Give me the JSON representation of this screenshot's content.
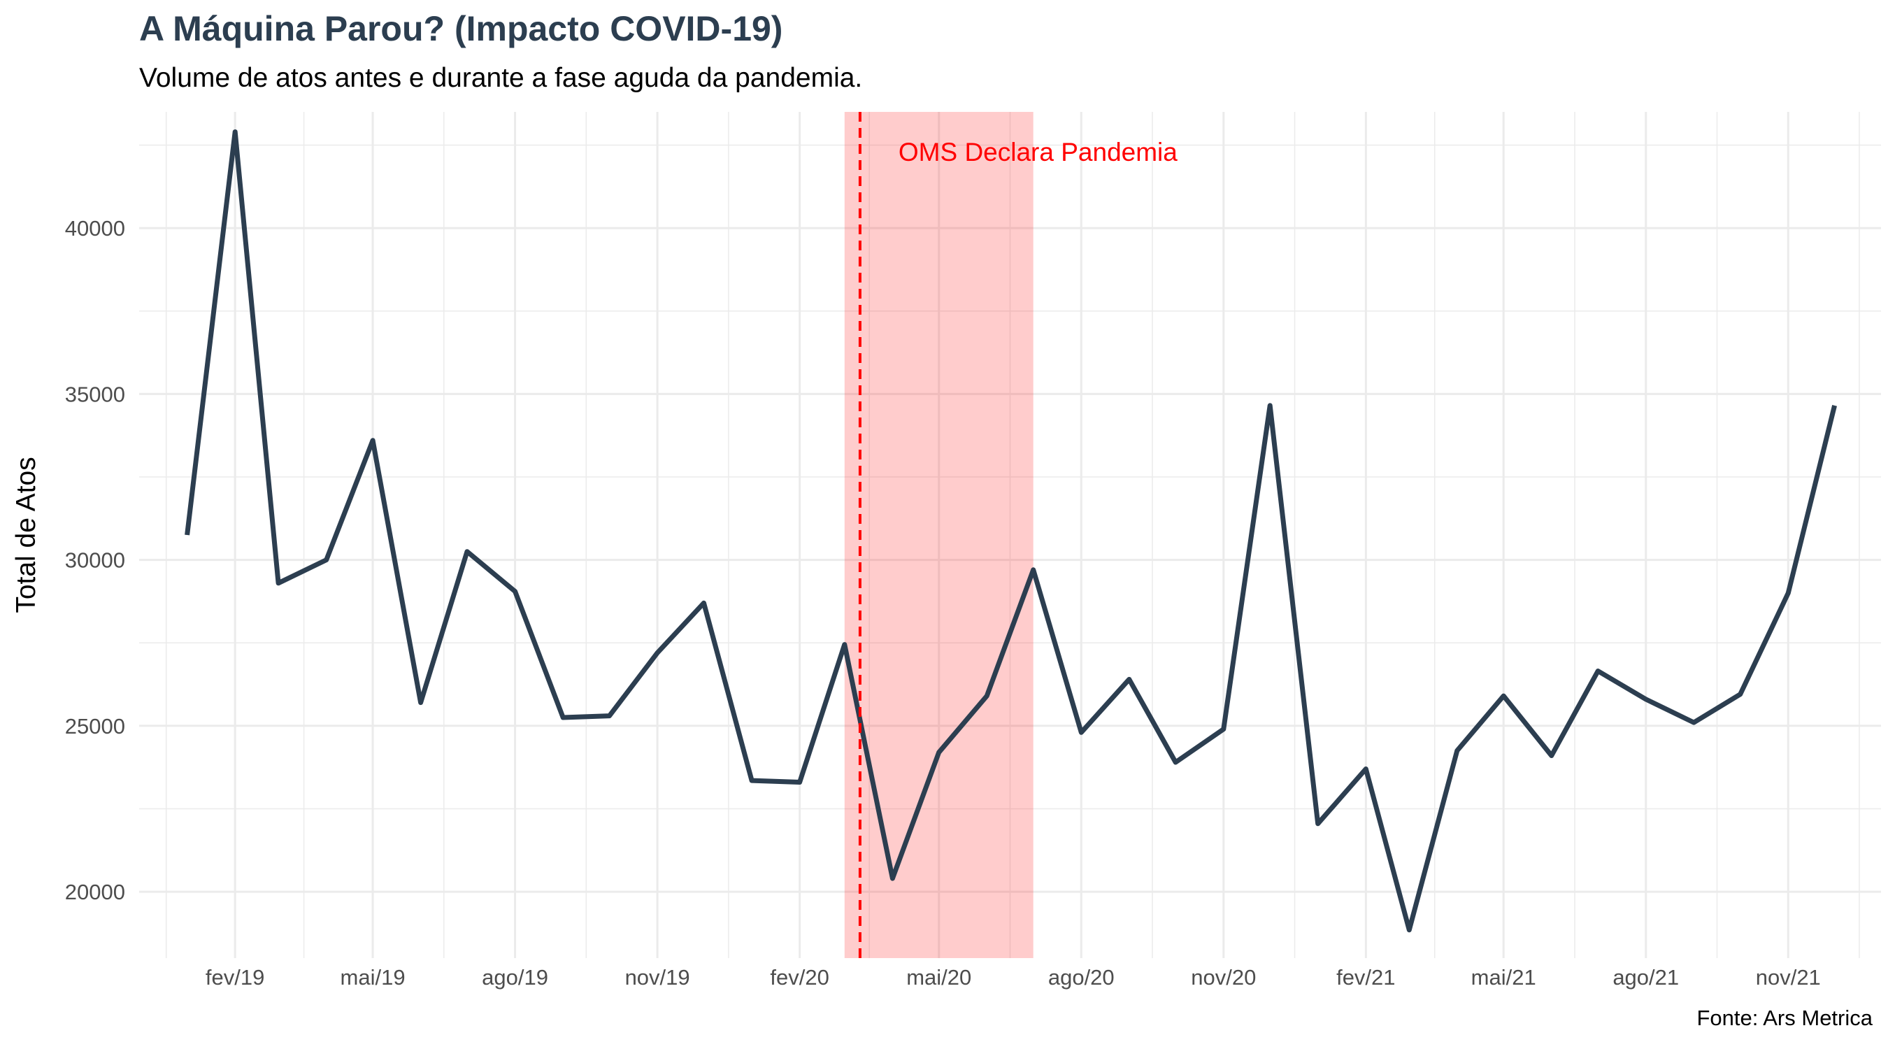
{
  "title": "A Máquina Parou? (Impacto COVID-19)",
  "subtitle": "Volume de atos antes e durante a fase aguda da pandemia.",
  "caption": "Fonte: Ars Metrica",
  "colors": {
    "line": "#2c3e50",
    "highlight": "#ff0000",
    "grid": "#ebebeb"
  },
  "chart_data": {
    "type": "line",
    "xlabel": "",
    "ylabel": "Total de Atos",
    "ylim": [
      18000,
      43500
    ],
    "xlim": [
      "2018-12-01",
      "2021-12-31"
    ],
    "y_ticks": [
      20000,
      25000,
      30000,
      35000,
      40000
    ],
    "x_ticks": [
      {
        "date": "2019-02-01",
        "label": "fev/19"
      },
      {
        "date": "2019-05-01",
        "label": "mai/19"
      },
      {
        "date": "2019-08-01",
        "label": "ago/19"
      },
      {
        "date": "2019-11-01",
        "label": "nov/19"
      },
      {
        "date": "2020-02-01",
        "label": "fev/20"
      },
      {
        "date": "2020-05-01",
        "label": "mai/20"
      },
      {
        "date": "2020-08-01",
        "label": "ago/20"
      },
      {
        "date": "2020-11-01",
        "label": "nov/20"
      },
      {
        "date": "2021-02-01",
        "label": "fev/21"
      },
      {
        "date": "2021-05-01",
        "label": "mai/21"
      },
      {
        "date": "2021-08-01",
        "label": "ago/21"
      },
      {
        "date": "2021-11-01",
        "label": "nov/21"
      }
    ],
    "grid": true,
    "x": [
      "2019-01-01",
      "2019-02-01",
      "2019-03-01",
      "2019-04-01",
      "2019-05-01",
      "2019-06-01",
      "2019-07-01",
      "2019-08-01",
      "2019-09-01",
      "2019-10-01",
      "2019-11-01",
      "2019-12-01",
      "2020-01-01",
      "2020-02-01",
      "2020-03-01",
      "2020-04-01",
      "2020-05-01",
      "2020-06-01",
      "2020-07-01",
      "2020-08-01",
      "2020-09-01",
      "2020-10-01",
      "2020-11-01",
      "2020-12-01",
      "2021-01-01",
      "2021-02-01",
      "2021-03-01",
      "2021-04-01",
      "2021-05-01",
      "2021-06-01",
      "2021-07-01",
      "2021-08-01",
      "2021-09-01",
      "2021-10-01",
      "2021-11-01",
      "2021-12-01"
    ],
    "y": [
      30750,
      42900,
      29300,
      30000,
      33600,
      25700,
      30250,
      29050,
      25250,
      25300,
      27200,
      28700,
      23350,
      23300,
      27450,
      20400,
      24200,
      25900,
      29700,
      24800,
      26400,
      23900,
      24900,
      34650,
      22050,
      23700,
      18850,
      24250,
      25900,
      24100,
      26650,
      25800,
      25100,
      25950,
      29000,
      34650
    ],
    "shaded_region": {
      "start": "2020-03-01",
      "end": "2020-07-01"
    },
    "vline": {
      "date": "2020-03-11",
      "label": "OMS Declara Pandemia"
    }
  }
}
